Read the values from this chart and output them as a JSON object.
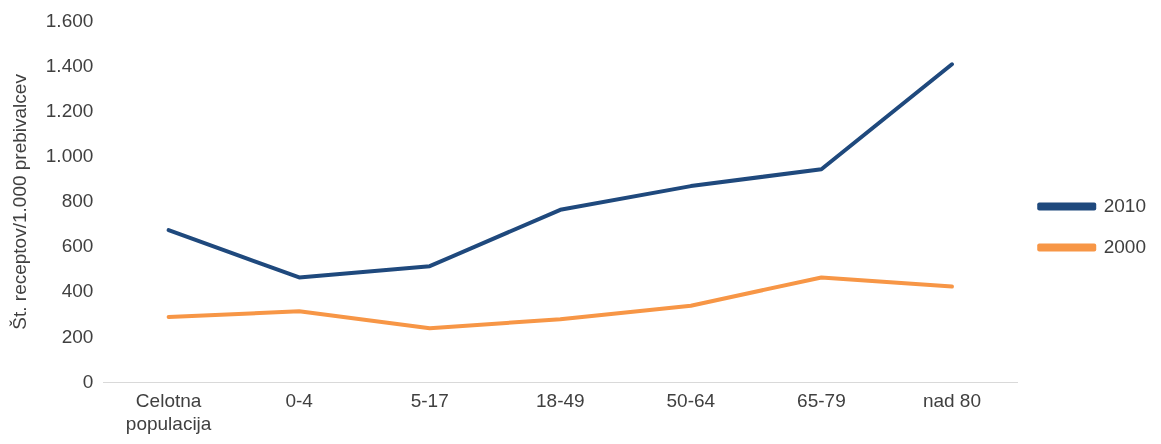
{
  "chart_data": {
    "type": "line",
    "ylabel": "Št. receptov/1.000 prebivalcev",
    "categories": [
      "Celotna populacija",
      "0-4",
      "5-17",
      "18-49",
      "50-64",
      "65-79",
      "nad 80"
    ],
    "series": [
      {
        "name": "2010",
        "color": "#1f497d",
        "values": [
          675,
          465,
          515,
          765,
          870,
          945,
          1410
        ]
      },
      {
        "name": "2000",
        "color": "#f79646",
        "values": [
          290,
          315,
          240,
          280,
          340,
          465,
          425
        ]
      }
    ],
    "ylim": [
      0,
      1600
    ],
    "yticks": [
      0,
      200,
      400,
      600,
      800,
      {
        "value": 1000,
        "label": "1.000"
      },
      {
        "value": 1200,
        "label": "1.200"
      },
      {
        "value": 1400,
        "label": "1.400"
      },
      {
        "value": 1600,
        "label": "1.600"
      }
    ],
    "grid": false,
    "legend": "right",
    "marker": "none",
    "line_style": "solid"
  }
}
